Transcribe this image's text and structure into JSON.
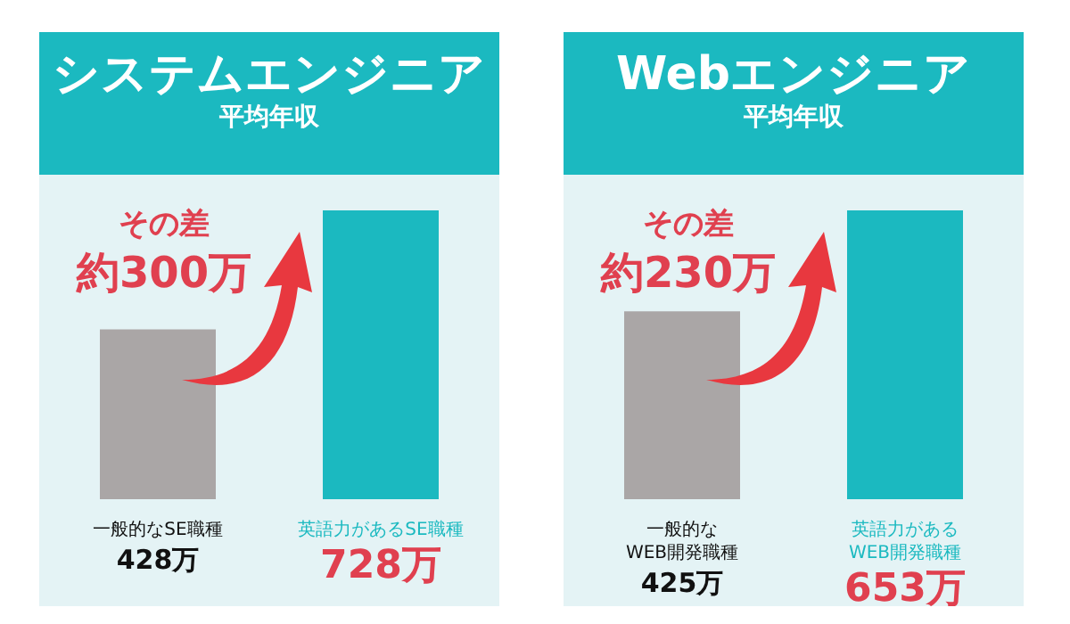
{
  "chart_data": [
    {
      "type": "bar",
      "title": "システムエンジニア",
      "subtitle": "平均年収",
      "categories": [
        "一般的なSE職種",
        "英語力があるSE職種"
      ],
      "values": [
        428,
        728
      ],
      "colors": [
        "#aaa6a6",
        "#1bb9c0"
      ],
      "value_labels": [
        "428万",
        "728万"
      ],
      "annotations": [
        "その差",
        "約300万"
      ]
    },
    {
      "type": "bar",
      "title": "Webエンジニア",
      "subtitle": "平均年収",
      "categories": [
        "一般的な\nWEB開発職種",
        "英語力がある\nWEB開発職種"
      ],
      "values": [
        425,
        653
      ],
      "colors": [
        "#aaa6a6",
        "#1bb9c0"
      ],
      "value_labels": [
        "425万",
        "653万"
      ],
      "annotations": [
        "その差",
        "約230万"
      ]
    }
  ]
}
